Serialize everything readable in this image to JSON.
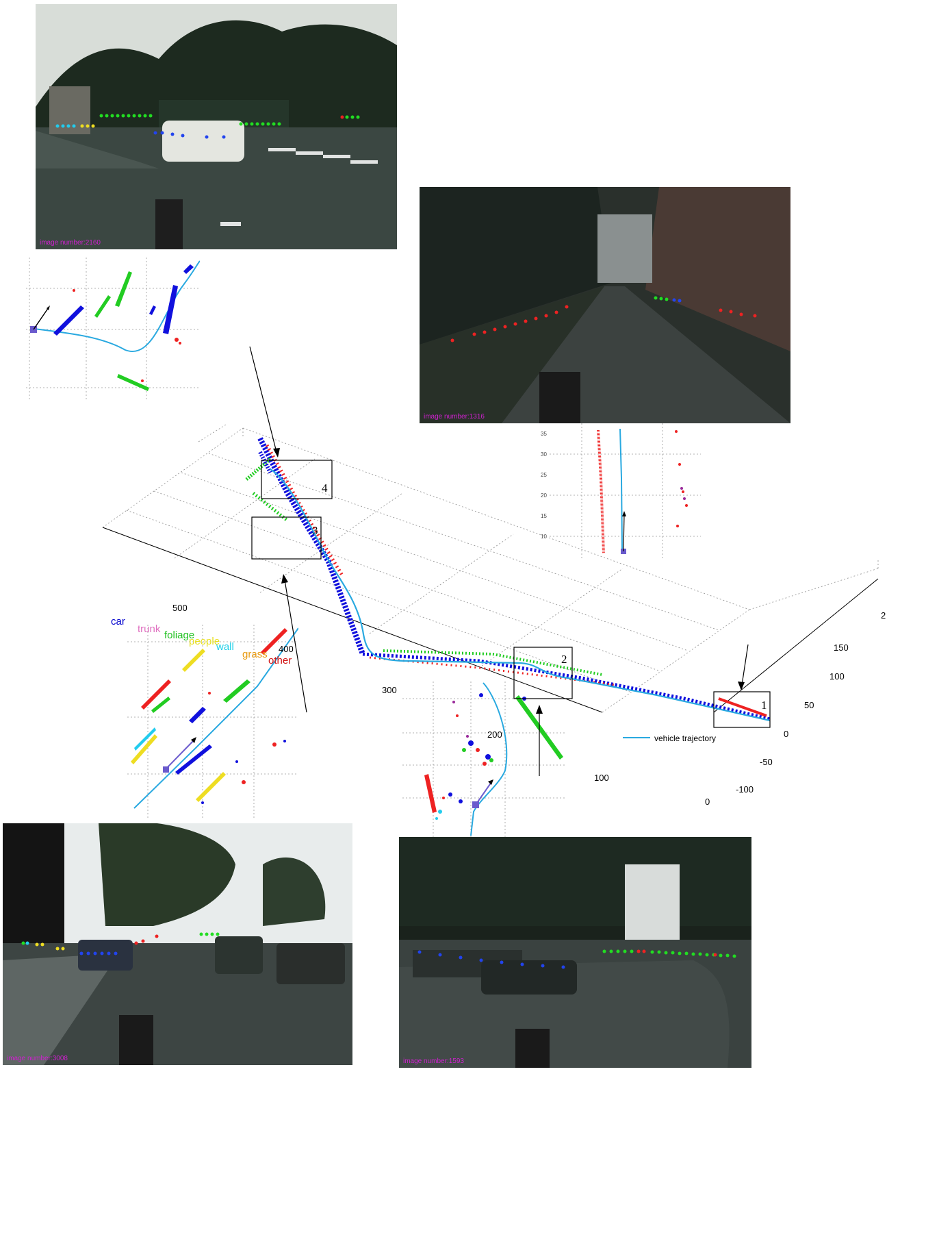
{
  "photos": [
    {
      "id": "p1",
      "label": "image number:2160"
    },
    {
      "id": "p2",
      "label": "image number:1316"
    },
    {
      "id": "p3",
      "label": "image number:3008"
    },
    {
      "id": "p4",
      "label": "image number:1593"
    }
  ],
  "legend": [
    {
      "name": "car",
      "color": "#0000cc"
    },
    {
      "name": "trunk",
      "color": "#e070c0"
    },
    {
      "name": "foliage",
      "color": "#20c020"
    },
    {
      "name": "people",
      "color": "#e8e020"
    },
    {
      "name": "wall",
      "color": "#20d0e8"
    },
    {
      "name": "grass",
      "color": "#e89a10"
    },
    {
      "name": "other",
      "color": "#d01010"
    }
  ],
  "trajectory_label": "vehicle trajectory",
  "trajectory_color": "#29a9e0",
  "x_ticks": [
    "500",
    "400",
    "300",
    "200",
    "100",
    "0"
  ],
  "y_ticks": [
    "150",
    "100",
    "50",
    "0",
    "-50",
    "-100"
  ],
  "z_tick": "2",
  "box_labels": [
    "1",
    "2",
    "3",
    "4"
  ],
  "inset_y_ticks": [
    "35",
    "30",
    "25",
    "20",
    "15",
    "10"
  ]
}
